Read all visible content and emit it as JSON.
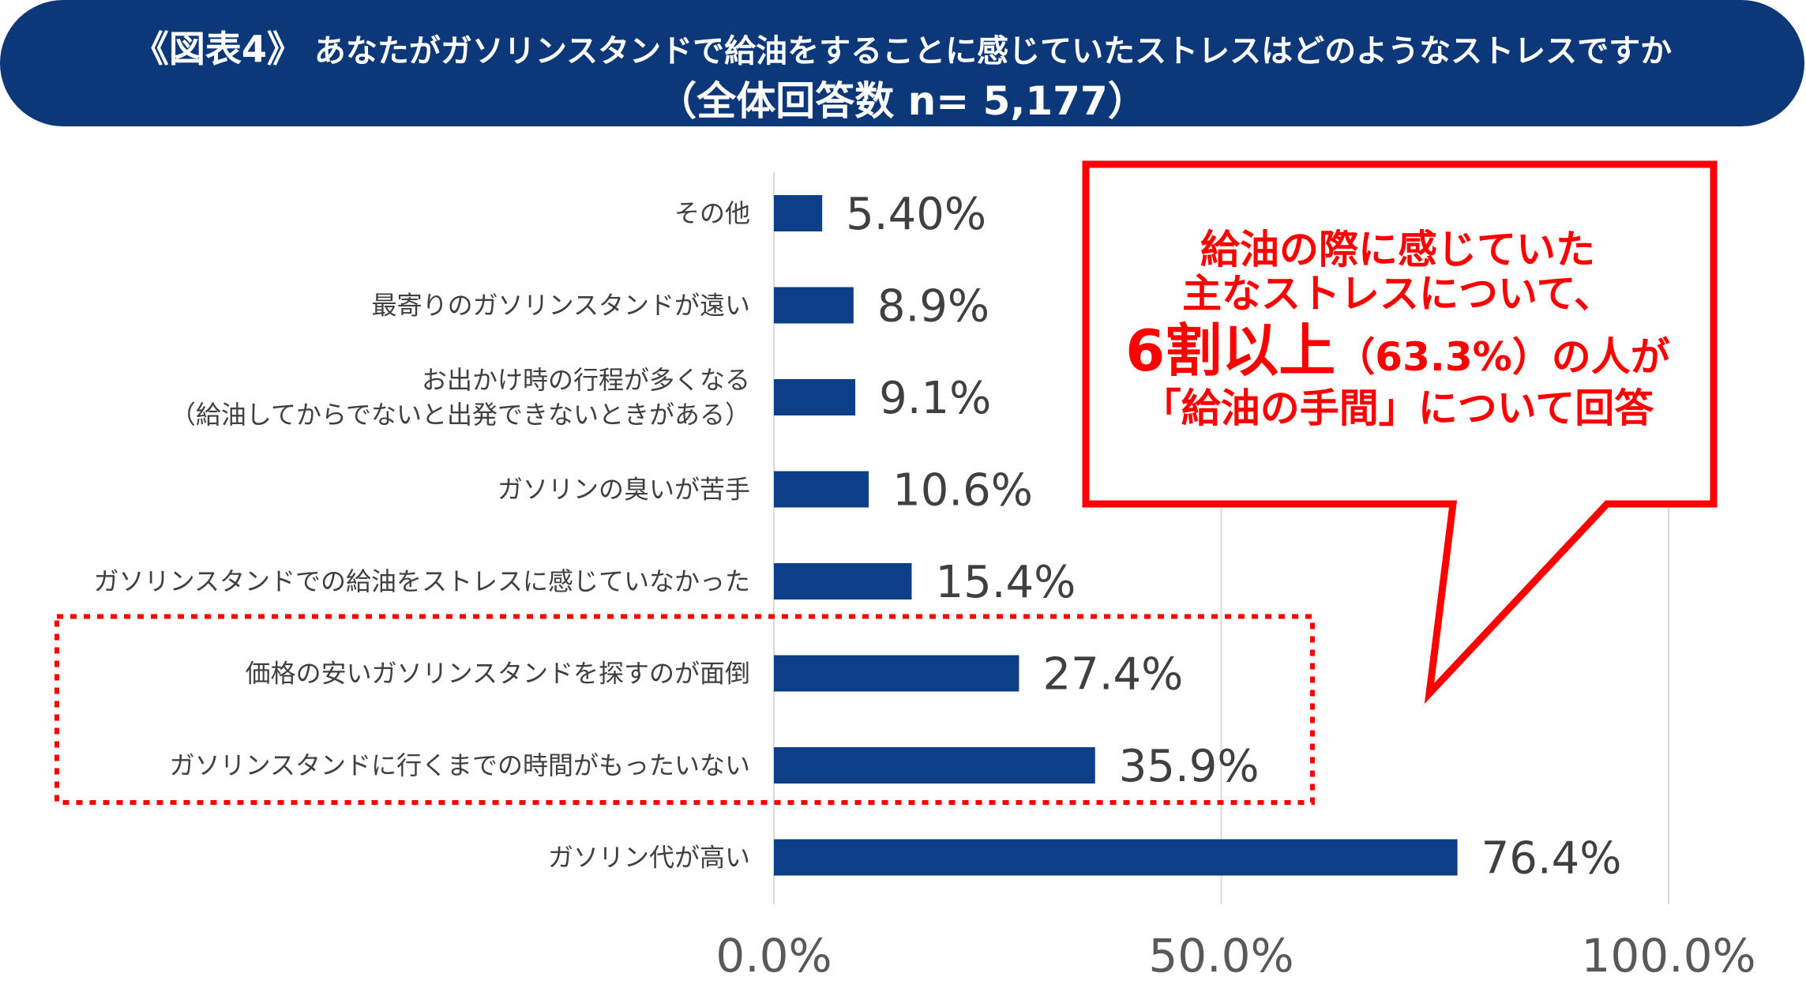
{
  "header": {
    "figure_tag": "《図表4》",
    "question": "あなたがガソリンスタンドで給油をすることに感じていたストレスはどのようなストレスですか",
    "subtitle": "（全体回答数 n= 5,177）"
  },
  "chart_data": {
    "type": "bar",
    "orientation": "horizontal",
    "categories": [
      [
        "その他"
      ],
      [
        "最寄りのガソリンスタンドが遠い"
      ],
      [
        "お出かけ時の行程が多くなる",
        "（給油してからでないと出発できないときがある）"
      ],
      [
        "ガソリンの臭いが苦手"
      ],
      [
        "ガソリンスタンドでの給油をストレスに感じていなかった"
      ],
      [
        "価格の安いガソリンスタンドを探すのが面倒"
      ],
      [
        "ガソリンスタンドに行くまでの時間がもったいない"
      ],
      [
        "ガソリン代が高い"
      ]
    ],
    "values": [
      5.4,
      8.9,
      9.1,
      10.6,
      15.4,
      27.4,
      35.9,
      76.4
    ],
    "value_labels": [
      "5.40%",
      "8.9%",
      "9.1%",
      "10.6%",
      "15.4%",
      "27.4%",
      "35.9%",
      "76.4%"
    ],
    "xlim": [
      0,
      100
    ],
    "x_ticks": [
      0,
      50,
      100
    ],
    "x_tick_labels": [
      "0.0%",
      "50.0%",
      "100.0%"
    ],
    "grid": true,
    "highlighted_categories": [
      5,
      6
    ],
    "bar_color": "#0c3f87"
  },
  "callout": {
    "line1": "給油の際に感じていた",
    "line2": "主なストレスについて、",
    "line3_big": "6割以上",
    "line3_pct": "（63.3%）",
    "line3_rest": "の人が",
    "line4": "「給油の手間」について回答"
  },
  "colors": {
    "header_bg": "#0c3778",
    "bar": "#0c3f87",
    "highlight": "#ff0000"
  }
}
